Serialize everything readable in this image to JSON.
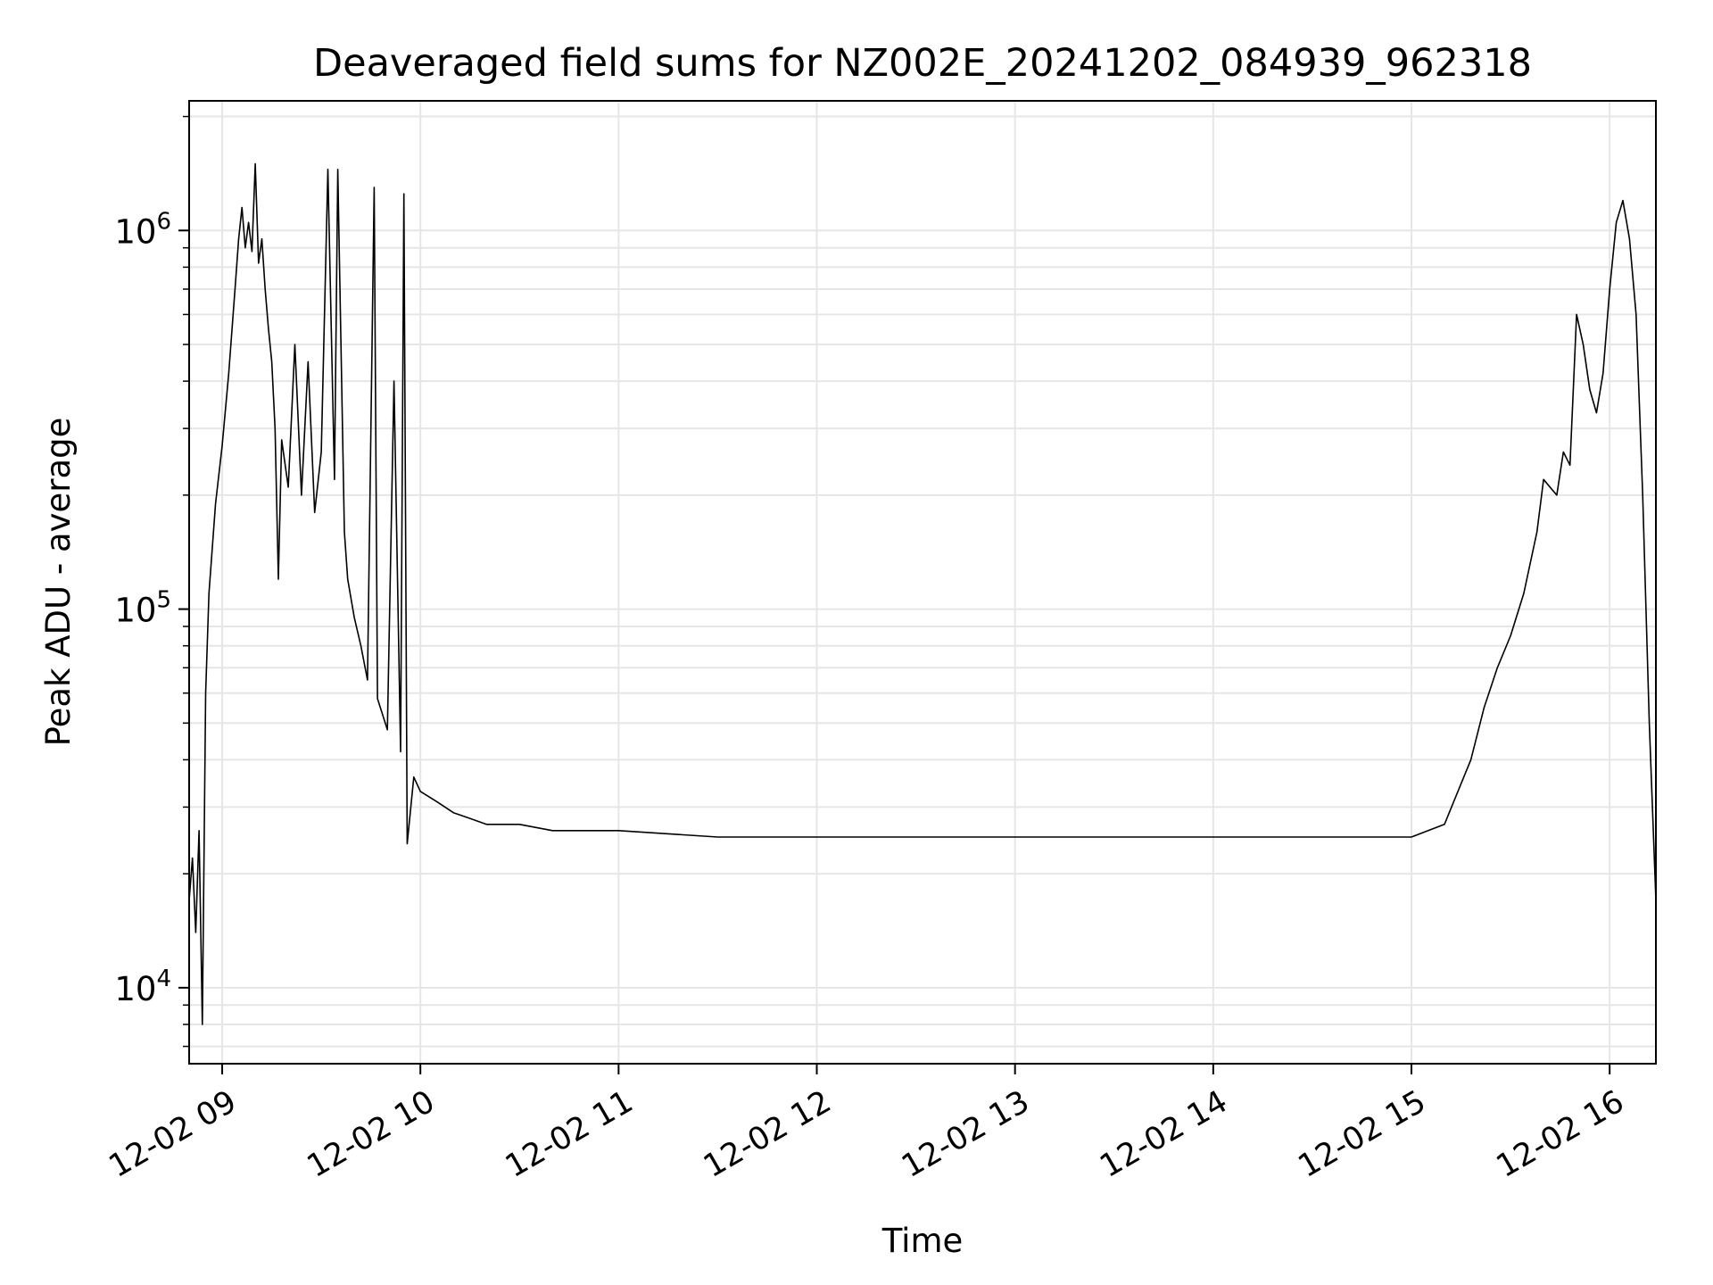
{
  "chart_data": {
    "type": "line",
    "title": "Deaveraged field sums for NZ002E_20241202_084939_962318",
    "xlabel": "Time",
    "ylabel": "Peak ADU - average",
    "y_scale": "log",
    "grid": true,
    "line_color": "#000000",
    "grid_color": "#e6e6e6",
    "xlim": [
      "2024-12-02 08:50",
      "2024-12-02 16:14"
    ],
    "ylim": [
      6300,
      2200000
    ],
    "x_ticks": [
      {
        "t": "2024-12-02 09:00",
        "label": "12-02 09"
      },
      {
        "t": "2024-12-02 10:00",
        "label": "12-02 10"
      },
      {
        "t": "2024-12-02 11:00",
        "label": "12-02 11"
      },
      {
        "t": "2024-12-02 12:00",
        "label": "12-02 12"
      },
      {
        "t": "2024-12-02 13:00",
        "label": "12-02 13"
      },
      {
        "t": "2024-12-02 14:00",
        "label": "12-02 14"
      },
      {
        "t": "2024-12-02 15:00",
        "label": "12-02 15"
      },
      {
        "t": "2024-12-02 16:00",
        "label": "12-02 16"
      }
    ],
    "y_ticks": [
      {
        "value": 10000,
        "base": "10",
        "exp": "4"
      },
      {
        "value": 100000,
        "base": "10",
        "exp": "5"
      },
      {
        "value": 1000000,
        "base": "10",
        "exp": "6"
      }
    ],
    "series": [
      {
        "points": [
          [
            "2024-12-02 08:50",
            17000
          ],
          [
            "2024-12-02 08:51",
            22000
          ],
          [
            "2024-12-02 08:52",
            14000
          ],
          [
            "2024-12-02 08:53",
            26000
          ],
          [
            "2024-12-02 08:54",
            8000
          ],
          [
            "2024-12-02 08:55",
            60000
          ],
          [
            "2024-12-02 08:56",
            110000
          ],
          [
            "2024-12-02 08:58",
            190000
          ],
          [
            "2024-12-02 09:00",
            270000
          ],
          [
            "2024-12-02 09:02",
            420000
          ],
          [
            "2024-12-02 09:04",
            720000
          ],
          [
            "2024-12-02 09:05",
            950000
          ],
          [
            "2024-12-02 09:06",
            1150000
          ],
          [
            "2024-12-02 09:07",
            900000
          ],
          [
            "2024-12-02 09:08",
            1050000
          ],
          [
            "2024-12-02 09:09",
            880000
          ],
          [
            "2024-12-02 09:10",
            1500000
          ],
          [
            "2024-12-02 09:11",
            820000
          ],
          [
            "2024-12-02 09:12",
            950000
          ],
          [
            "2024-12-02 09:13",
            700000
          ],
          [
            "2024-12-02 09:14",
            550000
          ],
          [
            "2024-12-02 09:15",
            450000
          ],
          [
            "2024-12-02 09:16",
            300000
          ],
          [
            "2024-12-02 09:17",
            120000
          ],
          [
            "2024-12-02 09:18",
            280000
          ],
          [
            "2024-12-02 09:20",
            210000
          ],
          [
            "2024-12-02 09:22",
            500000
          ],
          [
            "2024-12-02 09:24",
            200000
          ],
          [
            "2024-12-02 09:26",
            450000
          ],
          [
            "2024-12-02 09:28",
            180000
          ],
          [
            "2024-12-02 09:30",
            260000
          ],
          [
            "2024-12-02 09:32",
            1450000
          ],
          [
            "2024-12-02 09:34",
            220000
          ],
          [
            "2024-12-02 09:35",
            1450000
          ],
          [
            "2024-12-02 09:37",
            160000
          ],
          [
            "2024-12-02 09:38",
            120000
          ],
          [
            "2024-12-02 09:40",
            95000
          ],
          [
            "2024-12-02 09:42",
            80000
          ],
          [
            "2024-12-02 09:44",
            65000
          ],
          [
            "2024-12-02 09:46",
            1300000
          ],
          [
            "2024-12-02 09:47",
            58000
          ],
          [
            "2024-12-02 09:50",
            48000
          ],
          [
            "2024-12-02 09:52",
            400000
          ],
          [
            "2024-12-02 09:54",
            42000
          ],
          [
            "2024-12-02 09:55",
            1250000
          ],
          [
            "2024-12-02 09:56",
            24000
          ],
          [
            "2024-12-02 09:58",
            36000
          ],
          [
            "2024-12-02 10:00",
            33000
          ],
          [
            "2024-12-02 10:05",
            31000
          ],
          [
            "2024-12-02 10:10",
            29000
          ],
          [
            "2024-12-02 10:15",
            28000
          ],
          [
            "2024-12-02 10:20",
            27000
          ],
          [
            "2024-12-02 10:30",
            27000
          ],
          [
            "2024-12-02 10:40",
            26000
          ],
          [
            "2024-12-02 11:00",
            26000
          ],
          [
            "2024-12-02 11:30",
            25000
          ],
          [
            "2024-12-02 12:00",
            25000
          ],
          [
            "2024-12-02 12:30",
            25000
          ],
          [
            "2024-12-02 13:00",
            25000
          ],
          [
            "2024-12-02 13:30",
            25000
          ],
          [
            "2024-12-02 14:00",
            25000
          ],
          [
            "2024-12-02 14:30",
            25000
          ],
          [
            "2024-12-02 15:00",
            25000
          ],
          [
            "2024-12-02 15:10",
            27000
          ],
          [
            "2024-12-02 15:18",
            40000
          ],
          [
            "2024-12-02 15:22",
            55000
          ],
          [
            "2024-12-02 15:26",
            70000
          ],
          [
            "2024-12-02 15:30",
            85000
          ],
          [
            "2024-12-02 15:34",
            110000
          ],
          [
            "2024-12-02 15:38",
            160000
          ],
          [
            "2024-12-02 15:40",
            220000
          ],
          [
            "2024-12-02 15:44",
            200000
          ],
          [
            "2024-12-02 15:46",
            260000
          ],
          [
            "2024-12-02 15:48",
            240000
          ],
          [
            "2024-12-02 15:50",
            600000
          ],
          [
            "2024-12-02 15:52",
            500000
          ],
          [
            "2024-12-02 15:54",
            380000
          ],
          [
            "2024-12-02 15:56",
            330000
          ],
          [
            "2024-12-02 15:58",
            420000
          ],
          [
            "2024-12-02 16:00",
            700000
          ],
          [
            "2024-12-02 16:02",
            1050000
          ],
          [
            "2024-12-02 16:04",
            1200000
          ],
          [
            "2024-12-02 16:06",
            950000
          ],
          [
            "2024-12-02 16:08",
            600000
          ],
          [
            "2024-12-02 16:10",
            200000
          ],
          [
            "2024-12-02 16:12",
            50000
          ],
          [
            "2024-12-02 16:14",
            17000
          ]
        ]
      }
    ]
  }
}
